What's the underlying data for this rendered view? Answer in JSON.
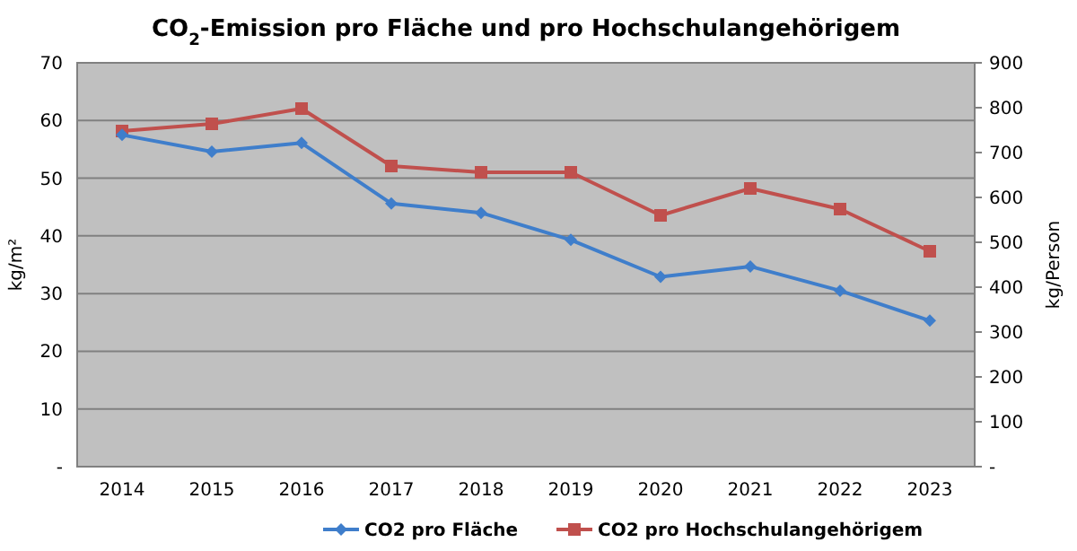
{
  "chart_data": {
    "type": "line",
    "title": "CO$_{2}$-Emission pro Fläche und pro Hochschulangehörigem",
    "ylabel": "kg/m²",
    "y2label": "kg/Person",
    "categories": [
      "2014",
      "2015",
      "2016",
      "2017",
      "2018",
      "2019",
      "2020",
      "2021",
      "2022",
      "2023"
    ],
    "series": [
      {
        "name": "CO2 pro Fläche",
        "color": "#3f7ecb",
        "marker": "diamond",
        "values": [
          57.5,
          54.6,
          56.1,
          45.6,
          44.0,
          39.3,
          32.9,
          34.7,
          30.5,
          25.3
        ]
      },
      {
        "name": "CO2 pro Hochschulangehörigem",
        "color": "#c0504d",
        "marker": "square",
        "axis": "y2",
        "values": [
          748,
          764,
          798,
          670,
          656,
          656,
          560,
          620,
          574,
          480
        ]
      }
    ],
    "ylim": [
      0,
      70
    ],
    "yticks": [
      {
        "value": 0,
        "label": "-"
      },
      10,
      20,
      30,
      40,
      50,
      60,
      70
    ],
    "y2lim": [
      0,
      900
    ],
    "y2ticks": [
      {
        "value": 0,
        "label": "-"
      },
      100,
      200,
      300,
      400,
      500,
      600,
      700,
      800,
      900
    ],
    "grid": "y",
    "legend": "bottom"
  }
}
